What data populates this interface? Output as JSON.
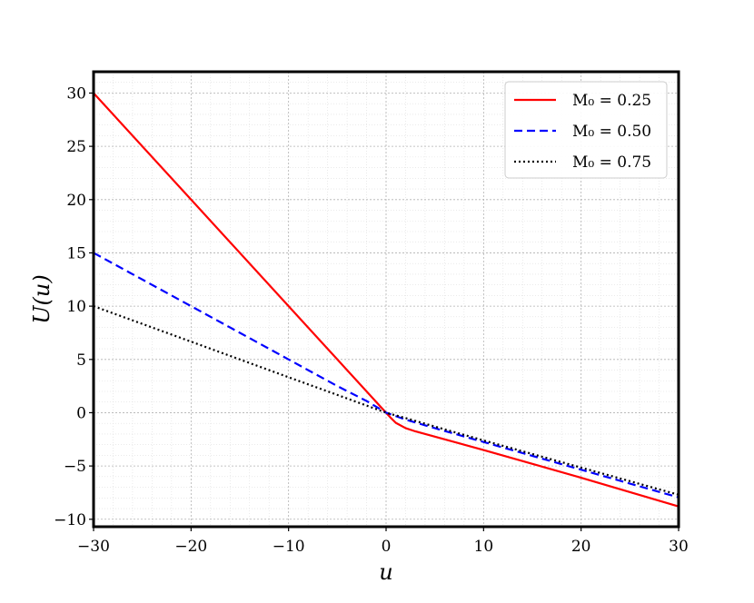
{
  "chart_data": {
    "type": "line",
    "xlabel": "u",
    "ylabel": "U(u)",
    "xlim": [
      -30,
      30
    ],
    "ylim": [
      -10.7,
      32
    ],
    "x_ticks": [
      -30,
      -20,
      -10,
      0,
      10,
      20,
      30
    ],
    "y_ticks": [
      -10,
      -5,
      0,
      5,
      10,
      15,
      20,
      25,
      30
    ],
    "x_tick_labels": [
      "−30",
      "−20",
      "−10",
      "0",
      "10",
      "20",
      "30"
    ],
    "y_tick_labels": [
      "−10",
      "−5",
      "0",
      "5",
      "10",
      "15",
      "20",
      "25",
      "30"
    ],
    "grid": true,
    "minor_grid": true,
    "legend_position": "top-right",
    "series": [
      {
        "name": "M₀ = 0.25",
        "color": "#ff0000",
        "style": "solid",
        "x": [
          -30,
          -20,
          -10,
          -5,
          -2,
          -1,
          0,
          0.5,
          1,
          2,
          3,
          5,
          10,
          20,
          30
        ],
        "y": [
          30,
          20,
          10,
          5,
          2,
          1,
          0,
          -0.5,
          -0.95,
          -1.45,
          -1.75,
          -2.25,
          -3.5,
          -6.1,
          -8.8
        ]
      },
      {
        "name": "M₀ = 0.50",
        "color": "#0000ff",
        "style": "dashed",
        "x": [
          -30,
          -20,
          -10,
          -5,
          -2,
          0,
          2,
          5,
          10,
          20,
          30
        ],
        "y": [
          15,
          10,
          5,
          2.5,
          1.1,
          0,
          -0.65,
          -1.45,
          -2.75,
          -5.35,
          -7.95
        ]
      },
      {
        "name": "M₀ = 0.75",
        "color": "#000000",
        "style": "dotted",
        "x": [
          -30,
          -20,
          -10,
          -5,
          -2,
          0,
          2,
          5,
          10,
          20,
          30
        ],
        "y": [
          10,
          6.67,
          3.33,
          1.67,
          0.67,
          0,
          -0.5,
          -1.3,
          -2.6,
          -5.15,
          -7.7
        ]
      }
    ]
  }
}
